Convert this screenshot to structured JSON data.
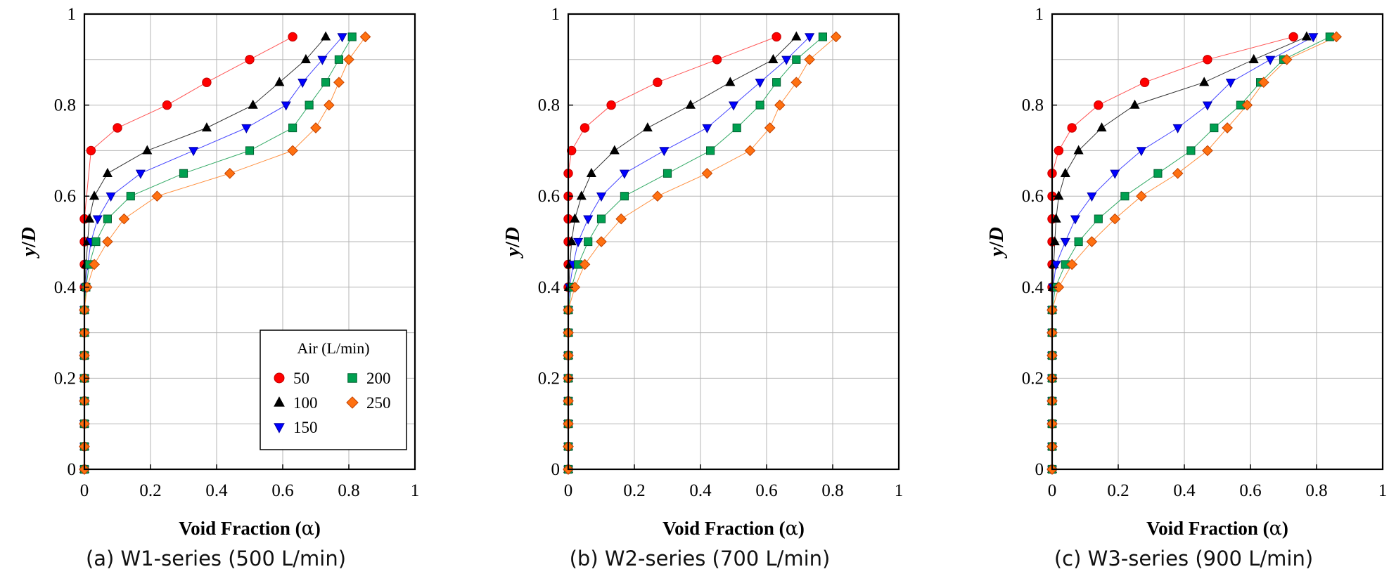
{
  "figure": {
    "legend_title": "Air (L/min)",
    "xlabel_text": "Void Fraction (",
    "xlabel_symbol": "α",
    "xlabel_close": ")",
    "ylabel_y": "y",
    "ylabel_D": "D",
    "series_styles": [
      {
        "name": "50",
        "marker": "circle",
        "color": "#ff0000",
        "stroke": "#c00000",
        "line": "#ff5555"
      },
      {
        "name": "100",
        "marker": "triangle-up",
        "color": "#000000",
        "stroke": "#000000",
        "line": "#333333"
      },
      {
        "name": "150",
        "marker": "triangle-down",
        "color": "#0000ff",
        "stroke": "#0000a0",
        "line": "#4444ff"
      },
      {
        "name": "200",
        "marker": "square",
        "color": "#00a050",
        "stroke": "#006030",
        "line": "#33aa66"
      },
      {
        "name": "250",
        "marker": "diamond",
        "color": "#ff7010",
        "stroke": "#c04000",
        "line": "#ff9040"
      }
    ]
  },
  "chart_data": [
    {
      "type": "line",
      "caption": "(a) W1-series (500 L/min)",
      "xlabel": "Void Fraction (α)",
      "ylabel": "y/D",
      "xlim": [
        0,
        1
      ],
      "ylim": [
        0,
        1
      ],
      "xticks": [
        "0",
        "0.2",
        "0.4",
        "0.6",
        "0.8",
        "1"
      ],
      "yticks": [
        "0",
        "0.2",
        "0.4",
        "0.6",
        "0.8",
        "1"
      ],
      "grid": true,
      "legend": "bottom-right",
      "series": [
        {
          "name": "50",
          "x": [
            0,
            0,
            0,
            0,
            0,
            0,
            0,
            0,
            0,
            0,
            0,
            0,
            0.02,
            0.1,
            0.25,
            0.37,
            0.5,
            0.63
          ],
          "y": [
            0,
            0.05,
            0.1,
            0.15,
            0.2,
            0.25,
            0.3,
            0.35,
            0.4,
            0.45,
            0.5,
            0.55,
            0.7,
            0.75,
            0.8,
            0.85,
            0.9,
            0.95
          ]
        },
        {
          "name": "100",
          "x": [
            0,
            0,
            0,
            0,
            0,
            0,
            0,
            0,
            0.002,
            0.005,
            0.01,
            0.015,
            0.03,
            0.07,
            0.19,
            0.37,
            0.51,
            0.59,
            0.67,
            0.73
          ],
          "y": [
            0,
            0.05,
            0.1,
            0.15,
            0.2,
            0.25,
            0.3,
            0.35,
            0.4,
            0.45,
            0.5,
            0.55,
            0.6,
            0.65,
            0.7,
            0.75,
            0.8,
            0.85,
            0.9,
            0.95
          ]
        },
        {
          "name": "150",
          "x": [
            0,
            0,
            0,
            0,
            0,
            0,
            0,
            0,
            0.003,
            0.01,
            0.02,
            0.04,
            0.08,
            0.17,
            0.33,
            0.49,
            0.61,
            0.66,
            0.72,
            0.78
          ],
          "y": [
            0,
            0.05,
            0.1,
            0.15,
            0.2,
            0.25,
            0.3,
            0.35,
            0.4,
            0.45,
            0.5,
            0.55,
            0.6,
            0.65,
            0.7,
            0.75,
            0.8,
            0.85,
            0.9,
            0.95
          ]
        },
        {
          "name": "200",
          "x": [
            0,
            0,
            0,
            0,
            0,
            0,
            0,
            0,
            0.005,
            0.015,
            0.035,
            0.07,
            0.14,
            0.3,
            0.5,
            0.63,
            0.68,
            0.73,
            0.77,
            0.81
          ],
          "y": [
            0,
            0.05,
            0.1,
            0.15,
            0.2,
            0.25,
            0.3,
            0.35,
            0.4,
            0.45,
            0.5,
            0.55,
            0.6,
            0.65,
            0.7,
            0.75,
            0.8,
            0.85,
            0.9,
            0.95
          ]
        },
        {
          "name": "250",
          "x": [
            0,
            0,
            0,
            0,
            0,
            0,
            0,
            0,
            0.008,
            0.03,
            0.07,
            0.12,
            0.22,
            0.44,
            0.63,
            0.7,
            0.74,
            0.77,
            0.8,
            0.85
          ],
          "y": [
            0,
            0.05,
            0.1,
            0.15,
            0.2,
            0.25,
            0.3,
            0.35,
            0.4,
            0.45,
            0.5,
            0.55,
            0.6,
            0.65,
            0.7,
            0.75,
            0.8,
            0.85,
            0.9,
            0.95
          ]
        }
      ]
    },
    {
      "type": "line",
      "caption": "(b) W2-series (700 L/min)",
      "xlabel": "Void Fraction (α)",
      "ylabel": "y/D",
      "xlim": [
        0,
        1
      ],
      "ylim": [
        0,
        1
      ],
      "xticks": [
        "0",
        "0.2",
        "0.4",
        "0.6",
        "0.8",
        "1"
      ],
      "yticks": [
        "0",
        "0.2",
        "0.4",
        "0.6",
        "0.8",
        "1"
      ],
      "grid": true,
      "series": [
        {
          "name": "50",
          "x": [
            0,
            0,
            0,
            0,
            0,
            0,
            0,
            0,
            0,
            0,
            0,
            0,
            0,
            0,
            0.01,
            0.05,
            0.13,
            0.27,
            0.45,
            0.63
          ],
          "y": [
            0,
            0.05,
            0.1,
            0.15,
            0.2,
            0.25,
            0.3,
            0.35,
            0.4,
            0.45,
            0.5,
            0.55,
            0.6,
            0.65,
            0.7,
            0.75,
            0.8,
            0.85,
            0.9,
            0.95
          ]
        },
        {
          "name": "100",
          "x": [
            0,
            0,
            0,
            0,
            0,
            0,
            0,
            0,
            0.002,
            0.005,
            0.01,
            0.02,
            0.04,
            0.07,
            0.14,
            0.24,
            0.37,
            0.49,
            0.62,
            0.69
          ],
          "y": [
            0,
            0.05,
            0.1,
            0.15,
            0.2,
            0.25,
            0.3,
            0.35,
            0.4,
            0.45,
            0.5,
            0.55,
            0.6,
            0.65,
            0.7,
            0.75,
            0.8,
            0.85,
            0.9,
            0.95
          ]
        },
        {
          "name": "150",
          "x": [
            0,
            0,
            0,
            0,
            0,
            0,
            0,
            0,
            0.004,
            0.015,
            0.03,
            0.06,
            0.1,
            0.17,
            0.29,
            0.42,
            0.5,
            0.58,
            0.66,
            0.73
          ],
          "y": [
            0,
            0.05,
            0.1,
            0.15,
            0.2,
            0.25,
            0.3,
            0.35,
            0.4,
            0.45,
            0.5,
            0.55,
            0.6,
            0.65,
            0.7,
            0.75,
            0.8,
            0.85,
            0.9,
            0.95
          ]
        },
        {
          "name": "200",
          "x": [
            0,
            0,
            0,
            0,
            0,
            0,
            0,
            0,
            0.01,
            0.03,
            0.06,
            0.1,
            0.17,
            0.3,
            0.43,
            0.51,
            0.58,
            0.63,
            0.69,
            0.77
          ],
          "y": [
            0,
            0.05,
            0.1,
            0.15,
            0.2,
            0.25,
            0.3,
            0.35,
            0.4,
            0.45,
            0.5,
            0.55,
            0.6,
            0.65,
            0.7,
            0.75,
            0.8,
            0.85,
            0.9,
            0.95
          ]
        },
        {
          "name": "250",
          "x": [
            0,
            0,
            0,
            0,
            0,
            0,
            0,
            0,
            0.02,
            0.05,
            0.1,
            0.16,
            0.27,
            0.42,
            0.55,
            0.61,
            0.64,
            0.69,
            0.73,
            0.81
          ],
          "y": [
            0,
            0.05,
            0.1,
            0.15,
            0.2,
            0.25,
            0.3,
            0.35,
            0.4,
            0.45,
            0.5,
            0.55,
            0.6,
            0.65,
            0.7,
            0.75,
            0.8,
            0.85,
            0.9,
            0.95
          ]
        }
      ]
    },
    {
      "type": "line",
      "caption": "(c) W3-series (900 L/min)",
      "xlabel": "Void Fraction (α)",
      "ylabel": "y/D",
      "xlim": [
        0,
        1
      ],
      "ylim": [
        0,
        1
      ],
      "xticks": [
        "0",
        "0.2",
        "0.4",
        "0.6",
        "0.8",
        "1"
      ],
      "yticks": [
        "0",
        "0.2",
        "0.4",
        "0.6",
        "0.8",
        "1"
      ],
      "grid": true,
      "series": [
        {
          "name": "50",
          "x": [
            0,
            0,
            0,
            0,
            0,
            0,
            0,
            0,
            0,
            0,
            0,
            0,
            0,
            0,
            0.02,
            0.06,
            0.14,
            0.28,
            0.47,
            0.73
          ],
          "y": [
            0,
            0.05,
            0.1,
            0.15,
            0.2,
            0.25,
            0.3,
            0.35,
            0.4,
            0.45,
            0.5,
            0.55,
            0.6,
            0.65,
            0.7,
            0.75,
            0.8,
            0.85,
            0.9,
            0.95
          ]
        },
        {
          "name": "100",
          "x": [
            0,
            0,
            0,
            0,
            0,
            0,
            0,
            0,
            0.002,
            0.005,
            0.008,
            0.012,
            0.02,
            0.04,
            0.08,
            0.15,
            0.25,
            0.46,
            0.61,
            0.77
          ],
          "y": [
            0,
            0.05,
            0.1,
            0.15,
            0.2,
            0.25,
            0.3,
            0.35,
            0.4,
            0.45,
            0.5,
            0.55,
            0.6,
            0.65,
            0.7,
            0.75,
            0.8,
            0.85,
            0.9,
            0.95
          ]
        },
        {
          "name": "150",
          "x": [
            0,
            0,
            0,
            0,
            0,
            0,
            0,
            0,
            0.003,
            0.012,
            0.04,
            0.07,
            0.12,
            0.19,
            0.27,
            0.38,
            0.47,
            0.54,
            0.66,
            0.79
          ],
          "y": [
            0,
            0.05,
            0.1,
            0.15,
            0.2,
            0.25,
            0.3,
            0.35,
            0.4,
            0.45,
            0.5,
            0.55,
            0.6,
            0.65,
            0.7,
            0.75,
            0.8,
            0.85,
            0.9,
            0.95
          ]
        },
        {
          "name": "200",
          "x": [
            0,
            0,
            0,
            0,
            0,
            0,
            0,
            0,
            0.01,
            0.04,
            0.08,
            0.14,
            0.22,
            0.32,
            0.42,
            0.49,
            0.57,
            0.63,
            0.7,
            0.84
          ],
          "y": [
            0,
            0.05,
            0.1,
            0.15,
            0.2,
            0.25,
            0.3,
            0.35,
            0.4,
            0.45,
            0.5,
            0.55,
            0.6,
            0.65,
            0.7,
            0.75,
            0.8,
            0.85,
            0.9,
            0.95
          ]
        },
        {
          "name": "250",
          "x": [
            0,
            0,
            0,
            0,
            0,
            0,
            0,
            0,
            0.02,
            0.06,
            0.12,
            0.19,
            0.27,
            0.38,
            0.47,
            0.53,
            0.59,
            0.64,
            0.71,
            0.86
          ],
          "y": [
            0,
            0.05,
            0.1,
            0.15,
            0.2,
            0.25,
            0.3,
            0.35,
            0.4,
            0.45,
            0.5,
            0.55,
            0.6,
            0.65,
            0.7,
            0.75,
            0.8,
            0.85,
            0.9,
            0.95
          ]
        }
      ]
    }
  ]
}
